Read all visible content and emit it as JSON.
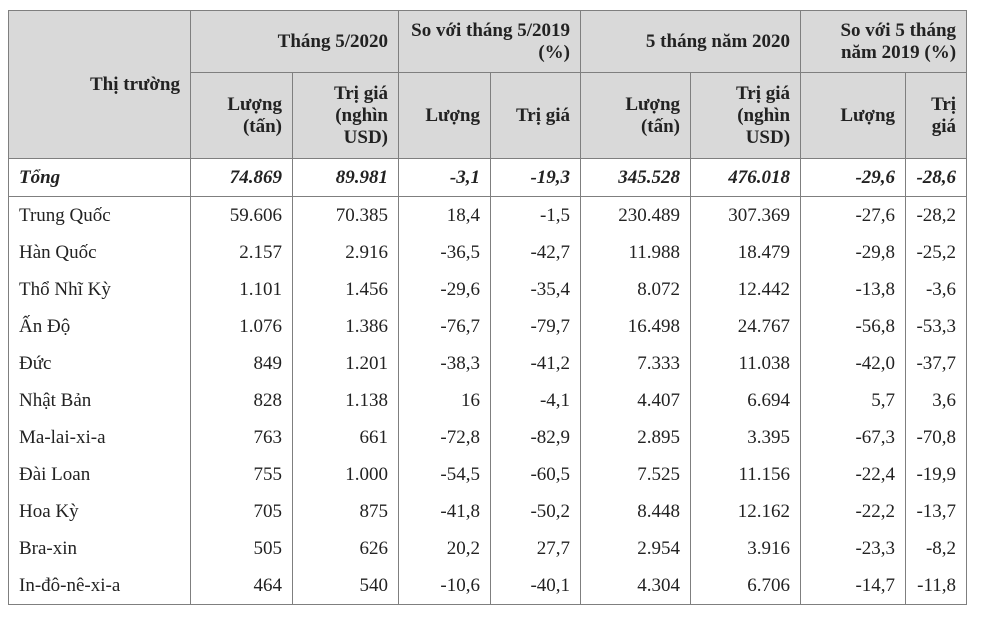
{
  "table": {
    "market_header": "Thị trường",
    "groups": [
      "Tháng 5/2020",
      "So với tháng 5/2019 (%)",
      "5 tháng năm 2020",
      "So với 5 tháng năm 2019 (%)"
    ],
    "columns": [
      "Lượng (tấn)",
      "Trị giá (nghìn USD)",
      "Lượng",
      "Trị giá",
      "Lượng (tấn)",
      "Trị giá (nghìn USD)",
      "Lượng",
      "Trị giá"
    ],
    "rows": [
      [
        "Tổng",
        "74.869",
        "89.981",
        "-3,1",
        "-19,3",
        "345.528",
        "476.018",
        "-29,6",
        "-28,6"
      ],
      [
        "Trung Quốc",
        "59.606",
        "70.385",
        "18,4",
        "-1,5",
        "230.489",
        "307.369",
        "-27,6",
        "-28,2"
      ],
      [
        "Hàn Quốc",
        "2.157",
        "2.916",
        "-36,5",
        "-42,7",
        "11.988",
        "18.479",
        "-29,8",
        "-25,2"
      ],
      [
        "Thổ Nhĩ Kỳ",
        "1.101",
        "1.456",
        "-29,6",
        "-35,4",
        "8.072",
        "12.442",
        "-13,8",
        "-3,6"
      ],
      [
        "Ấn Độ",
        "1.076",
        "1.386",
        "-76,7",
        "-79,7",
        "16.498",
        "24.767",
        "-56,8",
        "-53,3"
      ],
      [
        "Đức",
        "849",
        "1.201",
        "-38,3",
        "-41,2",
        "7.333",
        "11.038",
        "-42,0",
        "-37,7"
      ],
      [
        "Nhật Bản",
        "828",
        "1.138",
        "16",
        "-4,1",
        "4.407",
        "6.694",
        "5,7",
        "3,6"
      ],
      [
        "Ma-lai-xi-a",
        "763",
        "661",
        "-72,8",
        "-82,9",
        "2.895",
        "3.395",
        "-67,3",
        "-70,8"
      ],
      [
        "Đài Loan",
        "755",
        "1.000",
        "-54,5",
        "-60,5",
        "7.525",
        "11.156",
        "-22,4",
        "-19,9"
      ],
      [
        "Hoa Kỳ",
        "705",
        "875",
        "-41,8",
        "-50,2",
        "8.448",
        "12.162",
        "-22,2",
        "-13,7"
      ],
      [
        "Bra-xin",
        "505",
        "626",
        "20,2",
        "27,7",
        "2.954",
        "3.916",
        "-23,3",
        "-8,2"
      ],
      [
        "In-đô-nê-xi-a",
        "464",
        "540",
        "-10,6",
        "-40,1",
        "4.304",
        "6.706",
        "-14,7",
        "-11,8"
      ]
    ]
  }
}
